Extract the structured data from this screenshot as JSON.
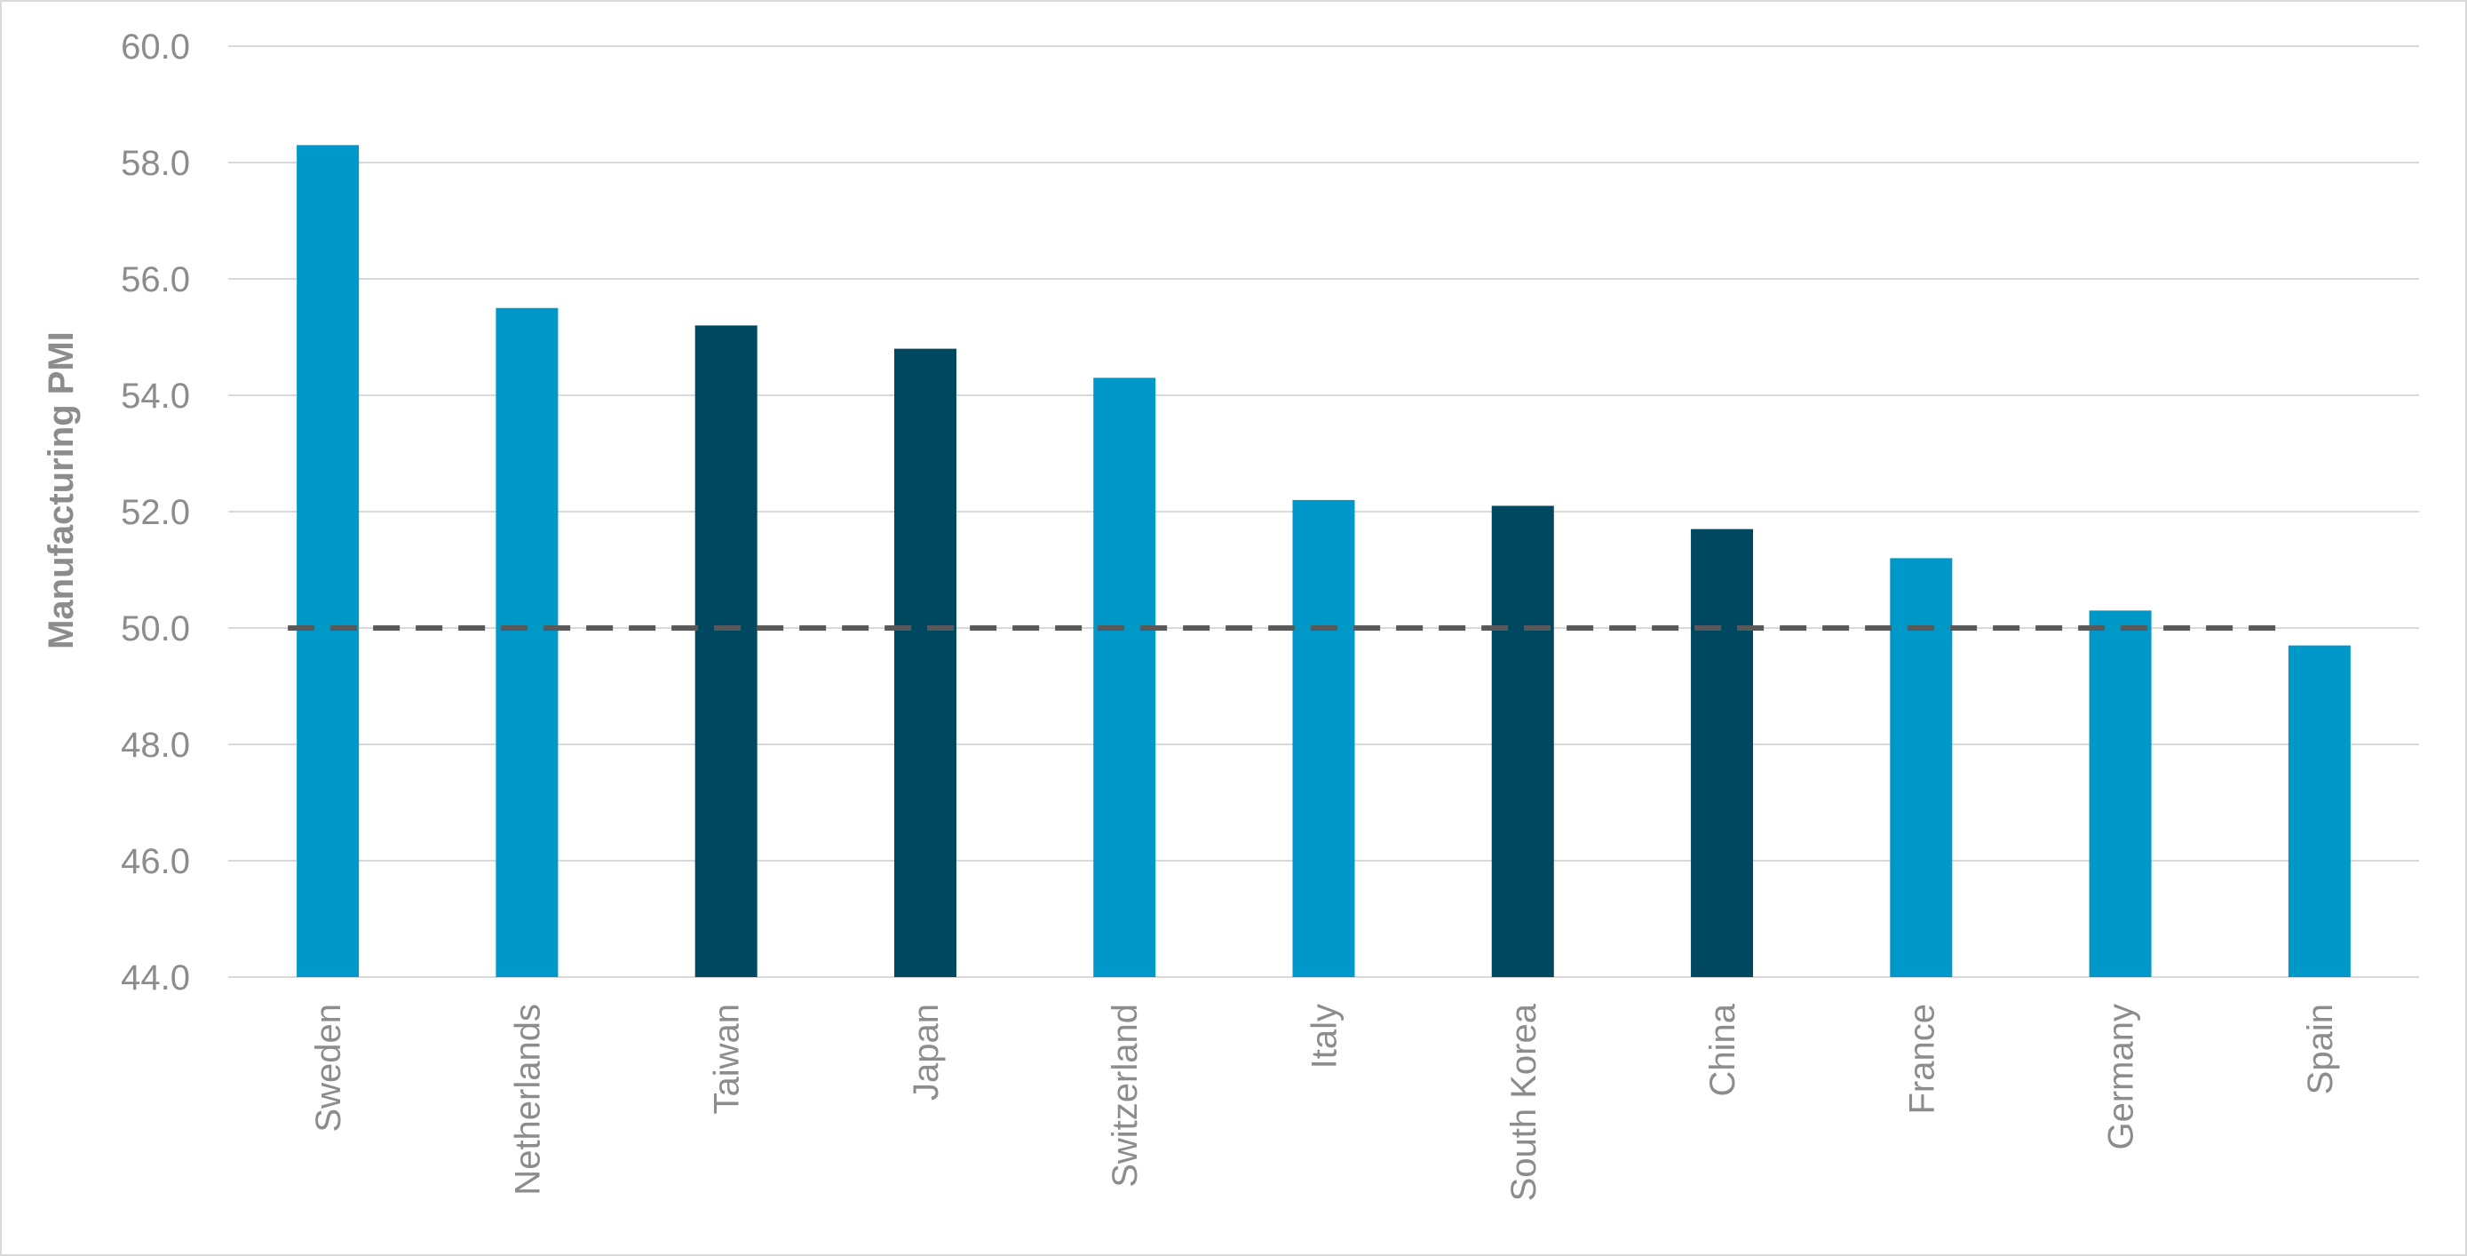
{
  "chart_data": {
    "type": "bar",
    "title": "",
    "xlabel": "",
    "ylabel": "Manufacturing PMI",
    "ylim": [
      44.0,
      60.0
    ],
    "yticks": [
      "44.0",
      "46.0",
      "48.0",
      "50.0",
      "52.0",
      "54.0",
      "56.0",
      "58.0",
      "60.0"
    ],
    "grid": true,
    "legend": "none",
    "categories": [
      "Sweden",
      "Netherlands",
      "Taiwan",
      "Japan",
      "Switzerland",
      "Italy",
      "South Korea",
      "China",
      "France",
      "Germany",
      "Spain"
    ],
    "values": [
      58.3,
      55.5,
      55.2,
      54.8,
      54.3,
      52.2,
      52.1,
      51.7,
      51.2,
      50.3,
      49.7
    ],
    "bar_color_groups": [
      "light",
      "light",
      "dark",
      "dark",
      "light",
      "light",
      "dark",
      "dark",
      "light",
      "light",
      "light"
    ],
    "colors": {
      "light": "#0098c8",
      "dark": "#00485f",
      "reference_line": "#595959",
      "grid": "#d9d9d9",
      "text": "#8c8c8c"
    },
    "reference_line": {
      "value": 50.0,
      "style": "dashed"
    }
  }
}
